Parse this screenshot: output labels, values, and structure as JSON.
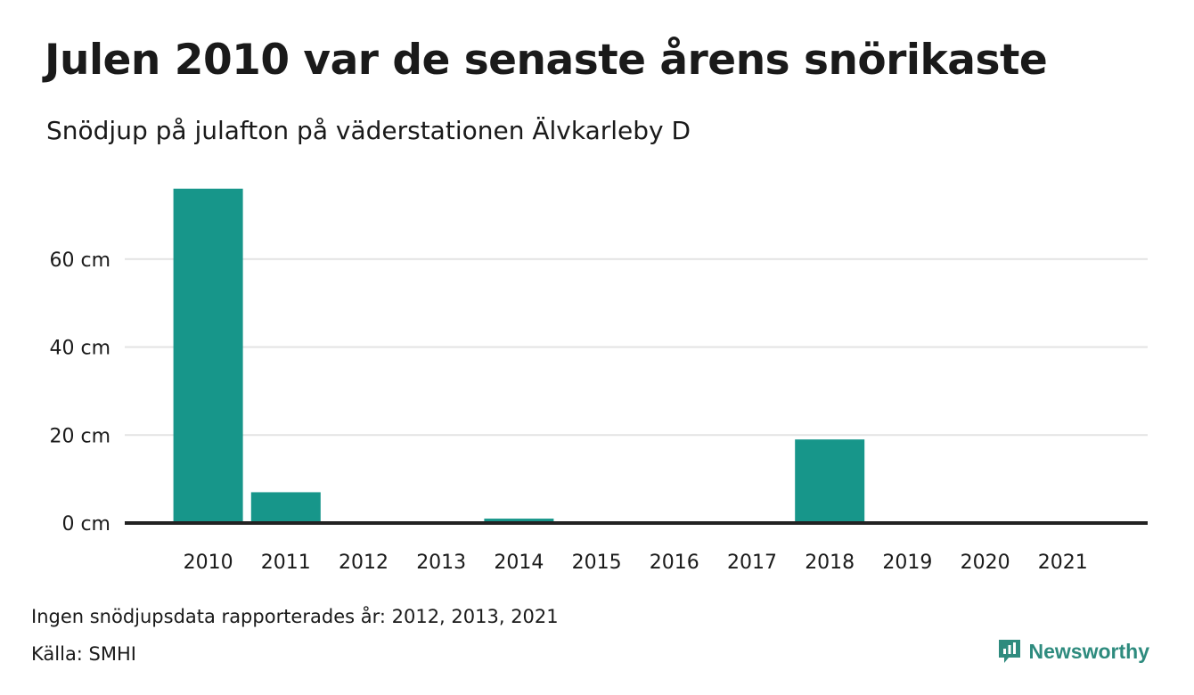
{
  "title": "Julen 2010 var de senaste årens snörikaste",
  "subtitle": "Snödjup på julafton på väderstationen Älvkarleby D",
  "footnote": "Ingen snödjupsdata rapporterades år: 2012, 2013, 2021",
  "source": "Källa: SMHI",
  "brand": {
    "name": "Newsworthy",
    "icon": "newsworthy-logo-icon",
    "color": "#2e8b7e"
  },
  "colors": {
    "bar": "#17968a",
    "grid": "#e3e3e3",
    "baseline": "#222222"
  },
  "chart_data": {
    "type": "bar",
    "title": "Julen 2010 var de senaste årens snörikaste",
    "subtitle": "Snödjup på julafton på väderstationen Älvkarleby D",
    "categories": [
      "2010",
      "2011",
      "2012",
      "2013",
      "2014",
      "2015",
      "2016",
      "2017",
      "2018",
      "2019",
      "2020",
      "2021"
    ],
    "values": [
      76,
      7,
      null,
      null,
      1,
      0,
      0,
      0,
      19,
      0,
      0,
      null
    ],
    "ylim": [
      0,
      80
    ],
    "yticks": [
      0,
      20,
      40,
      60
    ],
    "ytick_labels": [
      "0 cm",
      "20 cm",
      "40 cm",
      "60 cm"
    ],
    "grid": true,
    "xlabel": "",
    "ylabel": ""
  }
}
